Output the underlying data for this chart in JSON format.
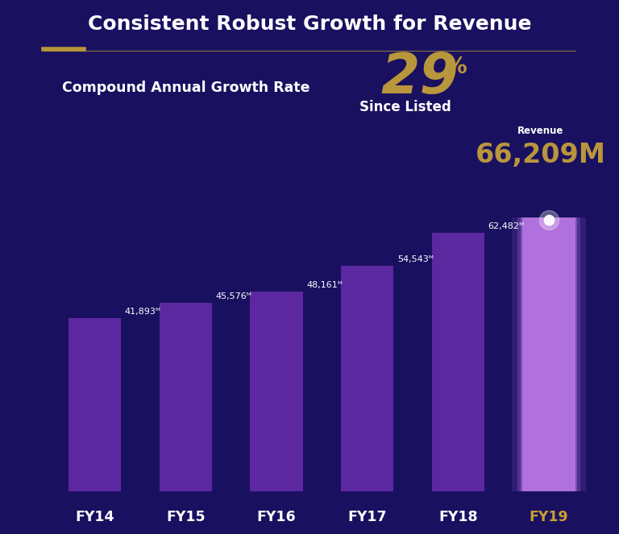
{
  "title": "Consistent Robust Growth for Revenue",
  "background_color": "#1a1060",
  "categories": [
    "FY14",
    "FY15",
    "FY16",
    "FY17",
    "FY18",
    "FY19"
  ],
  "values": [
    41893,
    45576,
    48161,
    54543,
    62482,
    66209
  ],
  "labels": [
    "41,893ᴹ",
    "45,576ᴹ",
    "48,161ᴹ",
    "54,543ᴹ",
    "62,482ᴹ"
  ],
  "bar_color_normal": "#5c28a0",
  "bar_color_fy19": "#b070dd",
  "bar_color_fy19_glow": "#cc88ff",
  "label_color": "#ffffff",
  "gold_color": "#b8963c",
  "white_color": "#ffffff",
  "title_color": "#ffffff",
  "separator_thin_color": "#8a7040",
  "separator_thick_color": "#b8963c",
  "cagr_text": "Compound Annual Growth Rate",
  "cagr_value": "29",
  "cagr_unit": "%",
  "cagr_sub": "Since Listed",
  "revenue_label": "Revenue",
  "revenue_value": "66,209",
  "revenue_unit": "M",
  "ylim_max": 80000,
  "x_label_color_fy19": "#c8a030",
  "x_label_color_others": "#ffffff"
}
